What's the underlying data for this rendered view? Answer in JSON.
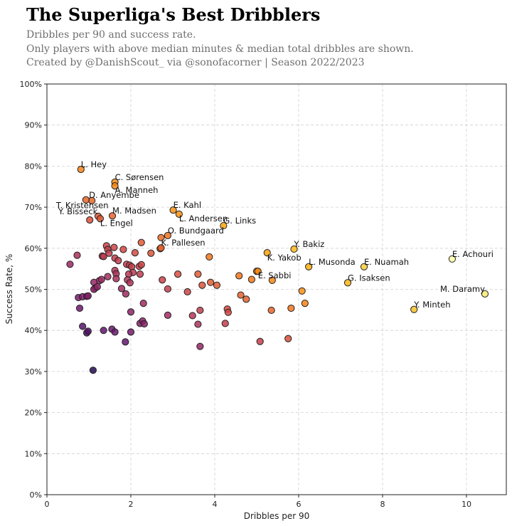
{
  "header": {
    "title": "The Superliga's Best Dribblers",
    "subtitle_lines": [
      "Dribbles per 90 and success rate.",
      "Only players with above median minutes & median total dribbles are shown.",
      "Created by @DanishScout_ via @sonofacorner | Season 2022/2023"
    ]
  },
  "chart_data": {
    "type": "scatter",
    "title": "The Superliga's Best Dribblers",
    "xlabel": "Dribbles per 90",
    "ylabel": "Success Rate, %",
    "xlim": [
      0,
      10.95
    ],
    "ylim": [
      0,
      100
    ],
    "xticks": [
      0,
      2,
      4,
      6,
      8,
      10
    ],
    "xtick_labels": [
      "0",
      "2",
      "4",
      "6",
      "8",
      "10"
    ],
    "yticks": [
      0,
      10,
      20,
      30,
      40,
      50,
      60,
      70,
      80,
      90,
      100
    ],
    "ytick_labels": [
      "0%",
      "10%",
      "20%",
      "30%",
      "40%",
      "50%",
      "60%",
      "70%",
      "80%",
      "90%",
      "100%"
    ],
    "grid": true,
    "colormap": "inferno (colored by dribbles per 90 × success rate)",
    "labeled_points": [
      {
        "name": "L. Hey",
        "x": 0.81,
        "y": 79.2
      },
      {
        "name": "C. Sørensen",
        "x": 1.62,
        "y": 76.1
      },
      {
        "name": "A. Manneh",
        "x": 1.62,
        "y": 75.2
      },
      {
        "name": "D. Anyembe",
        "x": 1.07,
        "y": 71.6
      },
      {
        "name": "T. Kristensen",
        "x": 0.93,
        "y": 71.8
      },
      {
        "name": "Y. Bisseck",
        "x": 1.02,
        "y": 66.9
      },
      {
        "name": "L. Engel",
        "x": 1.27,
        "y": 67.2
      },
      {
        "name": "M. Madsen",
        "x": 1.56,
        "y": 67.9
      },
      {
        "name": "E. Kahl",
        "x": 3.01,
        "y": 69.3
      },
      {
        "name": "L. Andersen",
        "x": 3.15,
        "y": 68.3
      },
      {
        "name": "G. Links",
        "x": 4.21,
        "y": 65.5
      },
      {
        "name": "O. Bundgaard",
        "x": 2.88,
        "y": 63.1
      },
      {
        "name": "K. Pallesen",
        "x": 2.72,
        "y": 60.1
      },
      {
        "name": "Y. Bakiz",
        "x": 5.89,
        "y": 59.8
      },
      {
        "name": "K. Yakob",
        "x": 5.25,
        "y": 58.9
      },
      {
        "name": "L. Musonda",
        "x": 6.24,
        "y": 55.5
      },
      {
        "name": "E. Nuamah",
        "x": 7.56,
        "y": 55.5
      },
      {
        "name": "E. Sabbi",
        "x": 5.03,
        "y": 54.4
      },
      {
        "name": "G. Isaksen",
        "x": 7.17,
        "y": 51.6
      },
      {
        "name": "E. Achouri",
        "x": 9.66,
        "y": 57.4
      },
      {
        "name": "M. Daramy",
        "x": 10.44,
        "y": 48.9
      },
      {
        "name": "Y. Minteh",
        "x": 8.75,
        "y": 45.1
      }
    ],
    "unlabeled_points": [
      [
        1.22,
        67.8
      ],
      [
        2.72,
        62.6
      ],
      [
        0.55,
        56.1
      ],
      [
        0.72,
        58.3
      ],
      [
        1.32,
        58.1
      ],
      [
        1.35,
        58.0
      ],
      [
        1.42,
        60.6
      ],
      [
        1.45,
        59.7
      ],
      [
        1.48,
        58.8
      ],
      [
        1.6,
        60.2
      ],
      [
        1.62,
        57.6
      ],
      [
        1.7,
        57.0
      ],
      [
        1.62,
        54.6
      ],
      [
        1.65,
        53.8
      ],
      [
        1.65,
        52.6
      ],
      [
        1.45,
        53.1
      ],
      [
        1.82,
        59.7
      ],
      [
        1.9,
        56.1
      ],
      [
        1.97,
        55.9
      ],
      [
        2.02,
        55.5
      ],
      [
        2.05,
        54.1
      ],
      [
        2.1,
        58.9
      ],
      [
        2.2,
        55.6
      ],
      [
        2.25,
        56.0
      ],
      [
        2.25,
        61.4
      ],
      [
        2.48,
        58.8
      ],
      [
        2.7,
        59.9
      ],
      [
        1.95,
        53.7
      ],
      [
        2.22,
        53.7
      ],
      [
        1.92,
        52.3
      ],
      [
        1.98,
        51.6
      ],
      [
        1.78,
        50.2
      ],
      [
        1.88,
        48.9
      ],
      [
        1.25,
        52.1
      ],
      [
        1.12,
        51.7
      ],
      [
        1.15,
        50.3
      ],
      [
        1.12,
        50.0
      ],
      [
        1.2,
        50.6
      ],
      [
        1.3,
        52.4
      ],
      [
        0.75,
        48.0
      ],
      [
        0.85,
        48.2
      ],
      [
        0.95,
        48.3
      ],
      [
        0.98,
        48.4
      ],
      [
        0.78,
        45.4
      ],
      [
        2.75,
        52.3
      ],
      [
        2.88,
        50.1
      ],
      [
        3.12,
        53.7
      ],
      [
        3.35,
        49.4
      ],
      [
        3.6,
        53.7
      ],
      [
        3.7,
        51.0
      ],
      [
        3.9,
        51.7
      ],
      [
        4.05,
        51.0
      ],
      [
        3.87,
        57.9
      ],
      [
        4.58,
        53.3
      ],
      [
        4.88,
        52.4
      ],
      [
        5.0,
        54.4
      ],
      [
        5.37,
        52.2
      ],
      [
        4.62,
        48.6
      ],
      [
        4.75,
        47.6
      ],
      [
        4.3,
        45.2
      ],
      [
        4.32,
        44.4
      ],
      [
        5.35,
        44.9
      ],
      [
        5.82,
        45.4
      ],
      [
        6.08,
        49.6
      ],
      [
        6.15,
        46.6
      ],
      [
        2.0,
        44.5
      ],
      [
        2.3,
        46.6
      ],
      [
        2.88,
        43.7
      ],
      [
        3.47,
        43.6
      ],
      [
        3.65,
        44.9
      ],
      [
        3.6,
        41.5
      ],
      [
        4.25,
        41.7
      ],
      [
        2.22,
        41.7
      ],
      [
        2.28,
        42.3
      ],
      [
        2.32,
        41.6
      ],
      [
        0.85,
        41.0
      ],
      [
        0.95,
        39.4
      ],
      [
        0.98,
        39.8
      ],
      [
        1.35,
        40.0
      ],
      [
        1.55,
        40.3
      ],
      [
        1.62,
        39.6
      ],
      [
        2.0,
        39.6
      ],
      [
        1.87,
        37.2
      ],
      [
        3.65,
        36.1
      ],
      [
        5.08,
        37.3
      ],
      [
        5.75,
        38.0
      ],
      [
        1.1,
        30.3
      ]
    ]
  }
}
